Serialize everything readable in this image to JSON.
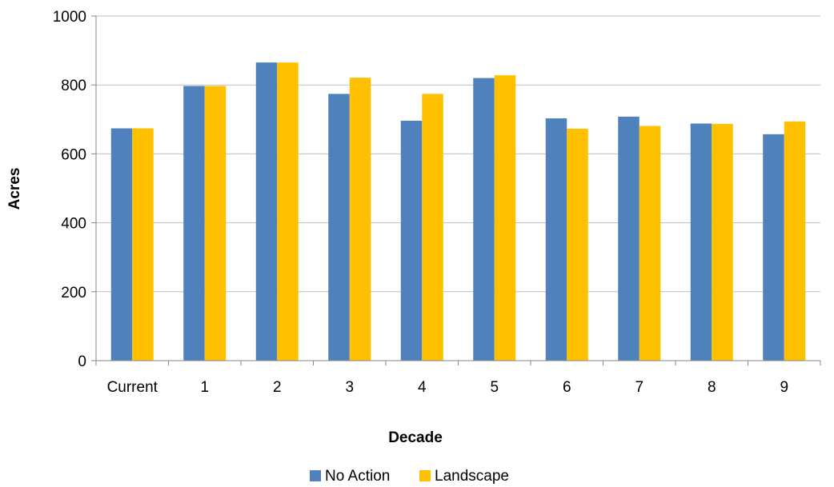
{
  "chart_data": {
    "type": "bar",
    "categories": [
      "Current",
      "1",
      "2",
      "3",
      "4",
      "5",
      "6",
      "7",
      "8",
      "9"
    ],
    "series": [
      {
        "name": "No Action",
        "color": "#4f81bd",
        "values": [
          674,
          797,
          865,
          774,
          696,
          820,
          703,
          708,
          688,
          657
        ]
      },
      {
        "name": "Landscape",
        "color": "#ffc000",
        "values": [
          674,
          797,
          865,
          821,
          774,
          828,
          673,
          681,
          687,
          694
        ]
      }
    ],
    "title": "",
    "xlabel": "Decade",
    "ylabel": "Acres",
    "ylim": [
      0,
      1000
    ],
    "yticks": [
      "0",
      "200",
      "400",
      "600",
      "800",
      "1000"
    ],
    "grid": true,
    "legend_position": "bottom"
  }
}
